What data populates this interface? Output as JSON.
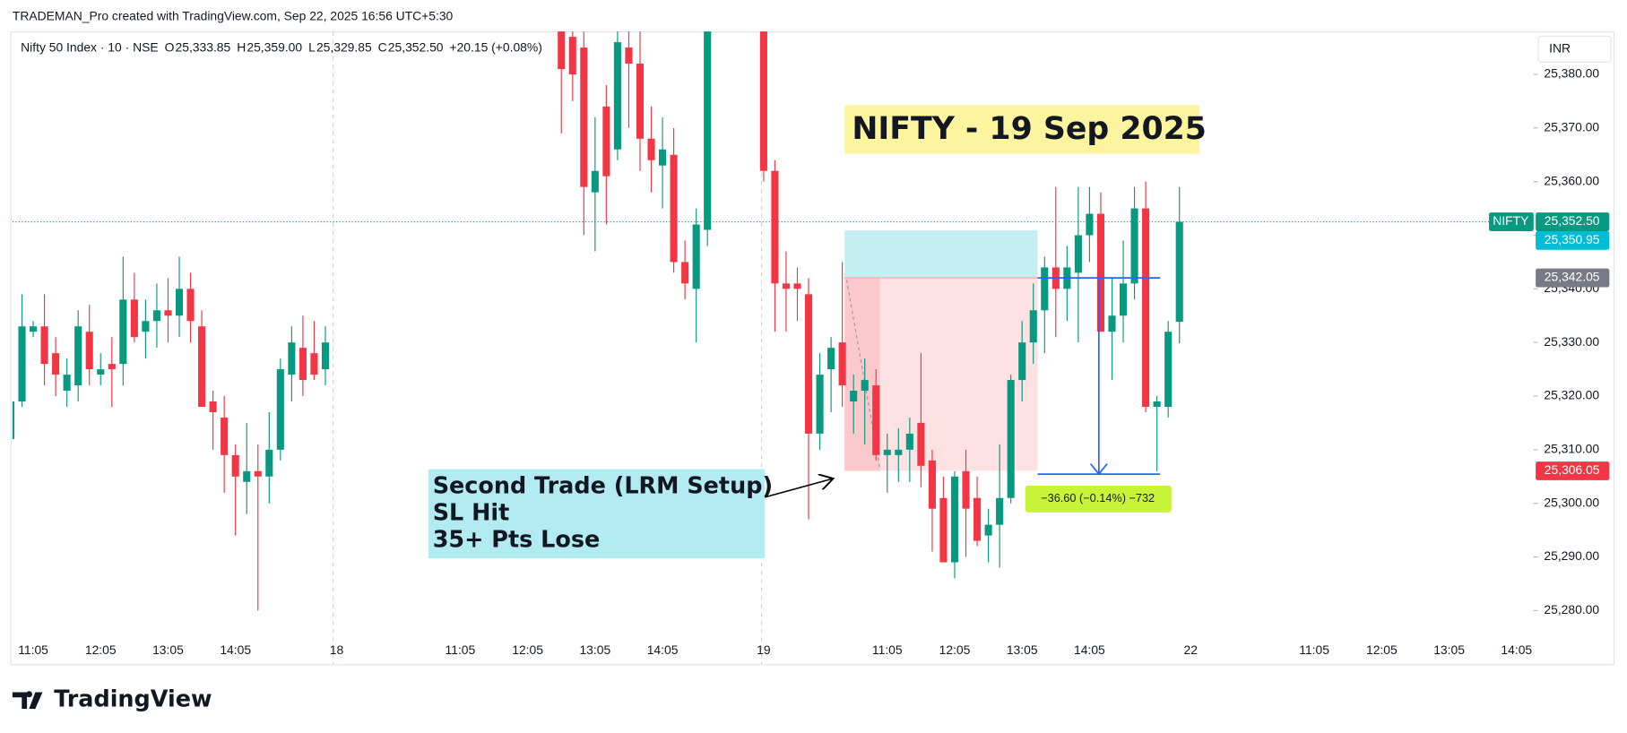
{
  "chart_data": {
    "type": "candlestick",
    "credit": "TRADEMAN_Pro created with TradingView.com, Sep 22, 2025 16:56 UTC+5:30",
    "brand": "TradingView",
    "currency": "INR",
    "legend": {
      "symbol": "Nifty 50 Index · 10 · NSE",
      "items": [
        {
          "key": "O",
          "value": "25,333.85"
        },
        {
          "key": "H",
          "value": "25,359.00"
        },
        {
          "key": "L",
          "value": "25,329.85"
        },
        {
          "key": "C",
          "value": "25,352.50"
        }
      ],
      "change": "+20.15 (+0.08%)"
    },
    "title": "NIFTY - 19 Sep 2025",
    "note": [
      "Second Trade (LRM Setup)",
      "SL Hit",
      "35+ Pts Lose"
    ],
    "up_color": "#089981",
    "down_color": "#f23645",
    "ylim": [
      25270,
      25388
    ],
    "yticks": [
      {
        "value": 25280,
        "label": "25,280.00"
      },
      {
        "value": 25290,
        "label": "25,290.00"
      },
      {
        "value": 25300,
        "label": "25,300.00"
      },
      {
        "value": 25310,
        "label": "25,310.00"
      },
      {
        "value": 25320,
        "label": "25,320.00"
      },
      {
        "value": 25330,
        "label": "25,330.00"
      },
      {
        "value": 25340,
        "label": "25,340.00"
      },
      {
        "value": 25350,
        "label": "25,350.00"
      },
      {
        "value": 25360,
        "label": "25,360.00"
      },
      {
        "value": 25370,
        "label": "25,370.00"
      },
      {
        "value": 25380,
        "label": "25,380.00"
      }
    ],
    "categories": [
      null,
      null,
      "11:05",
      null,
      null,
      null,
      null,
      null,
      "12:05",
      null,
      null,
      null,
      null,
      null,
      "13:05",
      null,
      null,
      null,
      null,
      null,
      "14:05",
      null,
      null,
      null,
      null,
      null,
      null,
      null,
      null,
      "18",
      null,
      null,
      null,
      null,
      null,
      null,
      null,
      null,
      null,
      null,
      "11:05",
      null,
      null,
      null,
      null,
      null,
      "12:05",
      null,
      null,
      null,
      null,
      null,
      "13:05",
      null,
      null,
      null,
      null,
      null,
      "14:05",
      null,
      null,
      null,
      null,
      null,
      null,
      null,
      null,
      "19",
      null,
      null,
      null,
      null,
      null,
      null,
      null,
      null,
      null,
      null,
      "11:05",
      null,
      null,
      null,
      null,
      null,
      "12:05",
      null,
      null,
      null,
      null,
      null,
      "13:05",
      null,
      null,
      null,
      null,
      null,
      "14:05",
      null,
      null,
      null,
      null,
      null,
      null,
      null,
      null,
      "22",
      null,
      null,
      null,
      null,
      null,
      null,
      null,
      null,
      null,
      null,
      "11:05",
      null,
      null,
      null,
      null,
      null,
      "12:05",
      null,
      null,
      null,
      null,
      null,
      "13:05",
      null,
      null,
      null,
      null,
      null,
      "14:05"
    ],
    "open": [
      25312,
      25319,
      25332,
      25333,
      25328,
      25321,
      25322,
      25332,
      25324,
      25326,
      25326,
      25338,
      25332,
      25334,
      25336,
      25335,
      25340,
      25333,
      25319,
      25316,
      25309,
      25304,
      25306,
      25305,
      25310,
      25324,
      25329,
      25328,
      25325,
      null,
      null,
      null,
      null,
      null,
      null,
      null,
      null,
      null,
      null,
      null,
      null,
      null,
      null,
      null,
      null,
      null,
      null,
      null,
      null,
      25390,
      25387,
      25385,
      25358,
      25374,
      25366,
      25385,
      25382,
      25368,
      25363,
      25365,
      25345,
      25340,
      25351,
      null,
      null,
      null,
      null,
      25395,
      25362,
      25341,
      25341,
      25339,
      25313,
      25325,
      25330,
      25319,
      25321,
      25322,
      25309,
      25309,
      25310,
      25315,
      25308,
      25301,
      25289,
      25306,
      25301,
      25294,
      25296,
      25301,
      25323,
      25330,
      25336,
      25344,
      25340,
      25343,
      25350,
      25354,
      25332,
      25335,
      25341,
      25355,
      25318,
      25318,
      25333.85,
      null,
      null,
      null,
      null,
      null,
      null,
      null,
      null,
      null,
      null,
      null,
      null,
      null,
      null,
      null,
      null,
      null,
      null,
      null,
      null,
      null,
      null,
      null,
      null,
      null,
      null,
      null,
      null,
      null,
      null
    ],
    "high": [
      25320,
      25339,
      25334,
      25339,
      25331,
      25327,
      25336,
      25337,
      25328,
      25331,
      25346,
      25343,
      25338,
      25341,
      25342,
      25346,
      25343,
      25336,
      25321,
      25320,
      25311,
      25315,
      25311,
      25317,
      25327,
      25333,
      25335,
      25334,
      25333,
      null,
      null,
      null,
      null,
      null,
      null,
      null,
      null,
      null,
      null,
      null,
      null,
      null,
      null,
      null,
      null,
      null,
      null,
      null,
      null,
      25395,
      25392,
      25390,
      25372,
      25378,
      25390,
      25390,
      25388,
      25374,
      25372,
      25370,
      25349,
      25355,
      25395,
      null,
      null,
      null,
      null,
      25398,
      25364,
      25347,
      25344,
      25342,
      25328,
      25331,
      25345,
      25324,
      25327,
      25325,
      25313,
      25314,
      25316,
      25328,
      25310,
      25305,
      25306,
      25310,
      25305,
      25299,
      25311,
      25324,
      25334,
      25341,
      25346,
      25359,
      25348,
      25359,
      25359,
      25358,
      25342,
      25349,
      25359,
      25360,
      25320,
      25334,
      25359.0,
      null,
      null,
      null,
      null,
      null,
      null,
      null,
      null,
      null,
      null,
      null,
      null,
      null,
      null,
      null,
      null,
      null,
      null,
      null,
      null,
      null,
      null,
      null,
      null,
      null,
      null,
      null,
      null,
      null,
      null
    ],
    "low": [
      25312,
      25318,
      25331,
      25322,
      25320,
      25318,
      25319,
      25322,
      25322,
      25318,
      25322,
      25330,
      25327,
      25329,
      25330,
      25331,
      25330,
      25318,
      25310,
      25302,
      25294,
      25298,
      25280,
      25300,
      25308,
      25319,
      25320,
      25323,
      25322,
      null,
      null,
      null,
      null,
      null,
      null,
      null,
      null,
      null,
      null,
      null,
      null,
      null,
      null,
      null,
      null,
      null,
      null,
      null,
      null,
      25369,
      25375,
      25350,
      25347,
      25352,
      25364,
      25370,
      25362,
      25358,
      25355,
      25343,
      25338,
      25330,
      25348,
      null,
      null,
      null,
      null,
      25360,
      25332,
      25332,
      25334,
      25297,
      25310,
      25317,
      25318,
      25313,
      25311,
      25308,
      25302,
      25304,
      25304,
      25303,
      25291,
      25289,
      25286,
      25290,
      25292,
      25289,
      25288,
      25300,
      25319,
      25326,
      25328,
      25331,
      25334,
      25330,
      25345,
      25332,
      25323,
      25330,
      25338,
      25317,
      25306,
      25316,
      25329.85,
      null,
      null,
      null,
      null,
      null,
      null,
      null,
      null,
      null,
      null,
      null,
      null,
      null,
      null,
      null,
      null,
      null,
      null,
      null,
      null,
      null,
      null,
      null,
      null,
      null,
      null,
      null,
      null,
      null,
      null
    ],
    "close": [
      25319,
      25333,
      25333,
      25326,
      25324,
      25324,
      25333,
      25325,
      25325,
      25325,
      25338,
      25331,
      25334,
      25336,
      25335,
      25340,
      25334,
      25318,
      25317,
      25309,
      25305,
      25306,
      25305,
      25310,
      25325,
      25330,
      25323,
      25324,
      25330,
      null,
      null,
      null,
      null,
      null,
      null,
      null,
      null,
      null,
      null,
      null,
      null,
      null,
      null,
      null,
      null,
      null,
      null,
      null,
      null,
      25381,
      25380,
      25359,
      25362,
      25361,
      25386,
      25382,
      25368,
      25364,
      25366,
      25345,
      25341,
      25352,
      25392,
      null,
      null,
      null,
      null,
      25362,
      25341,
      25340,
      25340,
      25313,
      25324,
      25329,
      25322,
      25321,
      25323,
      25309,
      25310,
      25310,
      25313,
      25307,
      25299,
      25289,
      25305,
      25299,
      25293,
      25296,
      25301,
      25323,
      25330,
      25336,
      25344,
      25340,
      25344,
      25350,
      25354,
      25332,
      25335,
      25341,
      25355,
      25318,
      25319,
      25332,
      25352.5,
      null,
      null,
      null,
      null,
      null,
      null,
      null,
      null,
      null,
      null,
      null,
      null,
      null,
      null,
      null,
      null,
      null,
      null,
      null,
      null,
      null,
      null,
      null,
      null,
      null,
      null,
      null,
      null,
      null,
      null
    ],
    "last_price": 25352.5,
    "symbol_tag": "NIFTY",
    "price_labels": [
      {
        "value": 25352.5,
        "label": "25,352.50",
        "color": "#089981"
      },
      {
        "value": 25350.95,
        "label": "25,350.95",
        "color": "#00bcd4"
      },
      {
        "value": 25342.05,
        "label": "25,342.05",
        "color": "#787b86"
      },
      {
        "value": 25306.05,
        "label": "25,306.05",
        "color": "#f23645"
      }
    ],
    "position": {
      "stop": 25350.95,
      "entry": 25342.05,
      "target": 25306.05
    },
    "measure": {
      "from": 25342.05,
      "to": 25305.45,
      "label": "−36.60 (−0.14%) −732"
    }
  }
}
